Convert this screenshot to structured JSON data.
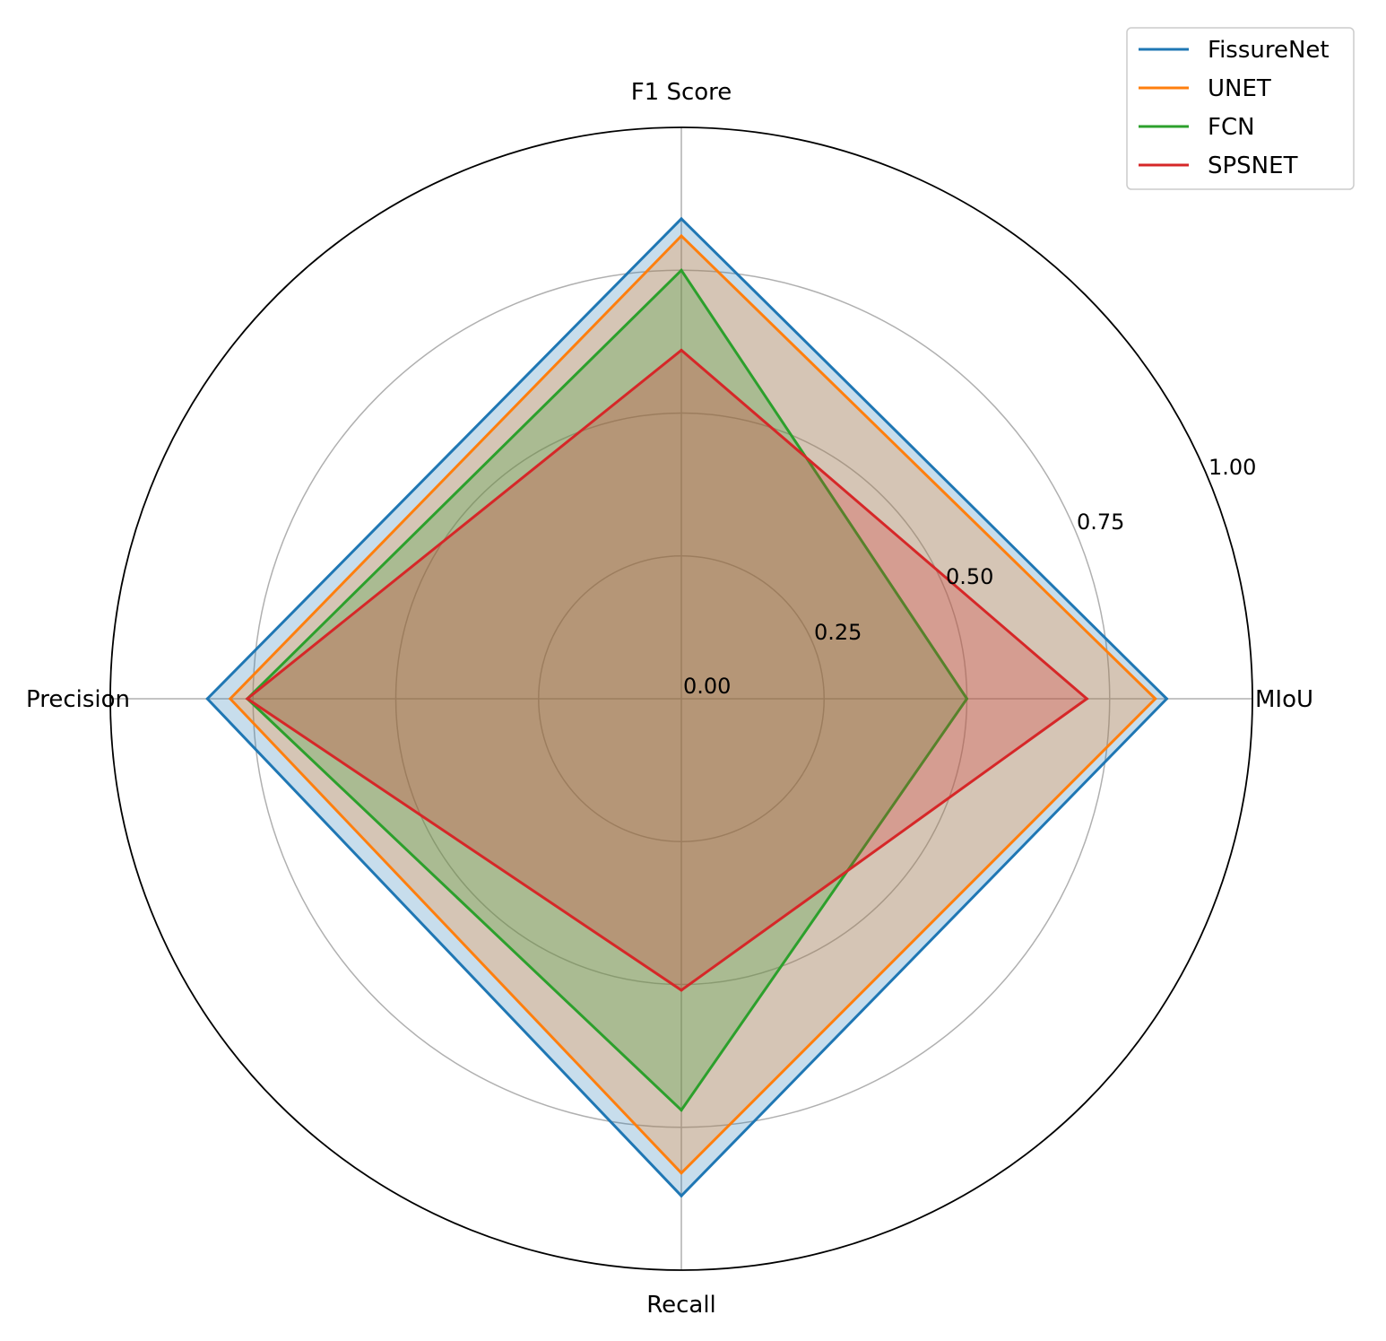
{
  "chart_data": {
    "type": "radar",
    "axes": [
      "MIoU",
      "F1 Score",
      "Precision",
      "Recall"
    ],
    "rlim": [
      0,
      1
    ],
    "rticks": [
      "0.00",
      "0.25",
      "0.50",
      "0.75",
      "1.00"
    ],
    "grid": true,
    "legend_position": "top-right",
    "series": [
      {
        "name": "FissureNet",
        "color": "#1f77b4",
        "values": [
          0.85,
          0.84,
          0.83,
          0.87
        ]
      },
      {
        "name": "UNET",
        "color": "#ff7f0e",
        "values": [
          0.83,
          0.81,
          0.79,
          0.83
        ]
      },
      {
        "name": "FCN",
        "color": "#2ca02c",
        "values": [
          0.5,
          0.75,
          0.76,
          0.72
        ]
      },
      {
        "name": "SPSNET",
        "color": "#d62728",
        "values": [
          0.71,
          0.61,
          0.76,
          0.51
        ]
      }
    ]
  }
}
